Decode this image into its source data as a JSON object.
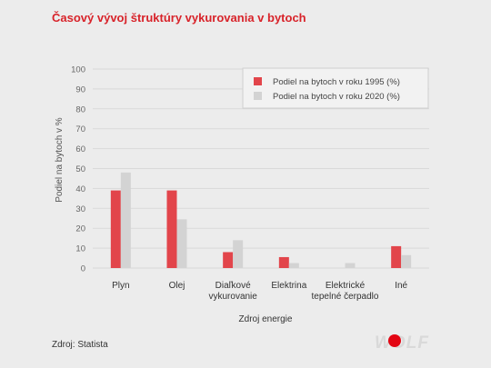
{
  "title": "Časový vývoj štruktúry vykurovania v bytoch",
  "source": "Zdroj: Statista",
  "logo_text": "WOLF",
  "colors": {
    "title": "#d8232a",
    "series_1995": "#e2454b",
    "series_2020": "#d3d3d3",
    "grid": "#d9d9d9",
    "axis_text": "#666666",
    "background": "#ececec",
    "logo": "#d9d9d9",
    "logo_dot": "#e30613"
  },
  "chart_data": {
    "type": "bar",
    "categories": [
      [
        "Plyn"
      ],
      [
        "Olej"
      ],
      [
        "Diaľkové",
        "vykurovanie"
      ],
      [
        "Elektrina"
      ],
      [
        "Elektrické",
        "tepelné čerpadlo"
      ],
      [
        "Iné"
      ]
    ],
    "series": [
      {
        "name": "Podiel na bytoch v roku 1995 (%)",
        "values": [
          39,
          39,
          8,
          5.5,
          0,
          11
        ]
      },
      {
        "name": "Podiel na bytoch v roku 2020 (%)",
        "values": [
          48,
          24.5,
          14,
          2.5,
          2.5,
          6.5
        ]
      }
    ],
    "xlabel": "Zdroj energie",
    "ylabel": "Podiel na bytoch v %",
    "ylim": [
      0,
      100
    ],
    "yticks": [
      0,
      10,
      20,
      30,
      40,
      50,
      60,
      70,
      80,
      90,
      100
    ],
    "grid": true,
    "legend_position": "top-right"
  }
}
